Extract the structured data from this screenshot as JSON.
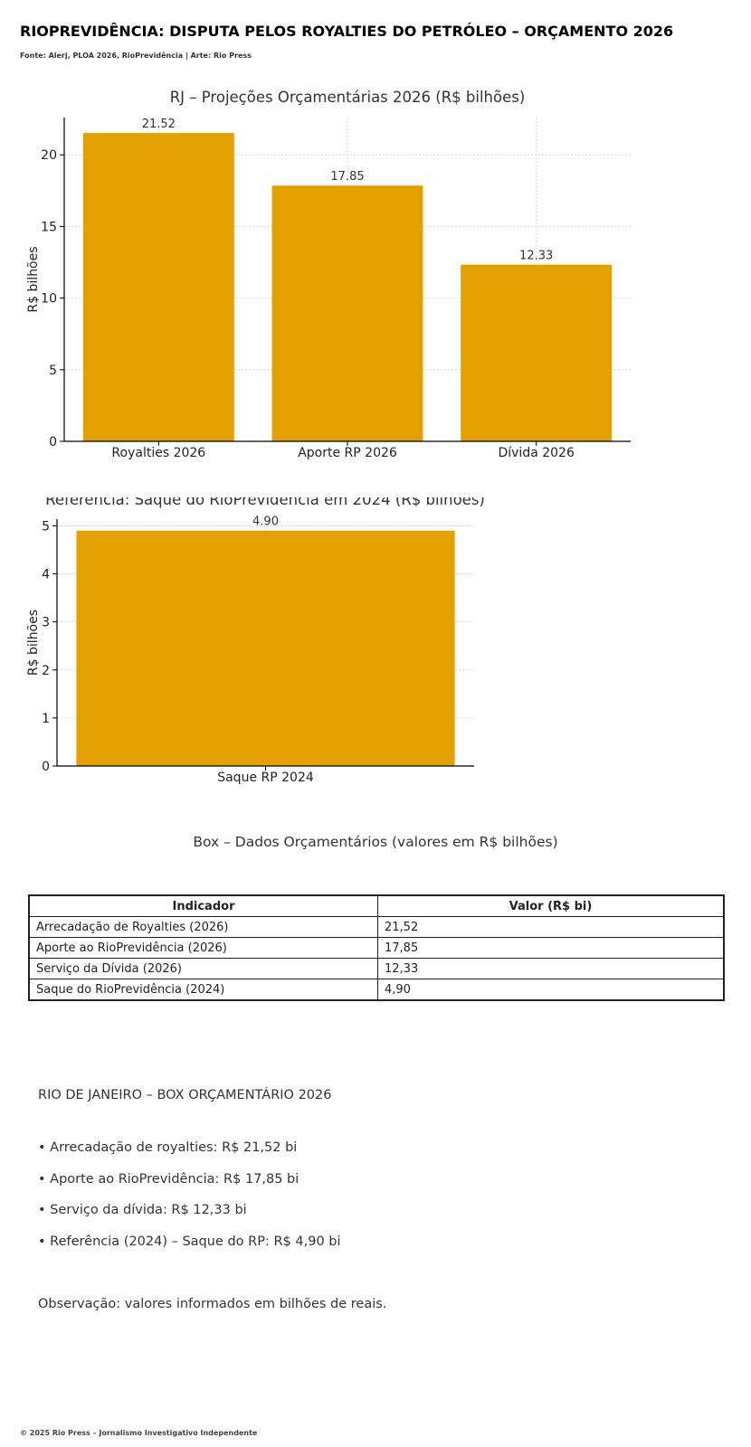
{
  "header": {
    "title": "RIOPREVIDÊNCIA: DISPUTA PELOS ROYALTIES DO PETRÓLEO – ORÇAMENTO 2026",
    "source": "Fonte: Alerj, PLOA 2026, RioPrevidência | Arte: Rio Press"
  },
  "colors": {
    "bar": "#E3A000",
    "grid": "#cfcfcf",
    "axis": "#000000"
  },
  "chart_data": [
    {
      "type": "bar",
      "title": "RJ – Projeções Orçamentárias 2026 (R$ bilhões)",
      "xlabel": "",
      "ylabel": "R$ bilhões",
      "categories": [
        "Royalties 2026",
        "Aporte RP 2026",
        "Dívida 2026"
      ],
      "values": [
        21.52,
        17.85,
        12.33
      ],
      "data_labels": [
        "21.52",
        "17.85",
        "12.33"
      ],
      "yticks": [
        0,
        5,
        10,
        15,
        20
      ],
      "ylim": [
        0,
        22.6
      ],
      "grid": true,
      "legend": "none"
    },
    {
      "type": "bar",
      "title": "Referência: Saque do RioPrevidência em 2024 (R$ bilhões)",
      "xlabel": "",
      "ylabel": "R$ bilhões",
      "categories": [
        "Saque RP 2024"
      ],
      "values": [
        4.9
      ],
      "data_labels": [
        "4.90"
      ],
      "yticks": [
        0,
        1,
        2,
        3,
        4,
        5
      ],
      "ylim": [
        0,
        5.14
      ],
      "grid": true,
      "legend": "none"
    }
  ],
  "box": {
    "title": "Box – Dados Orçamentários (valores em R$ bilhões)",
    "headers": [
      "Indicador",
      "Valor (R$ bi)"
    ],
    "rows": [
      [
        "Arrecadação de Royalties (2026)",
        "21,52"
      ],
      [
        "Aporte ao RioPrevidência (2026)",
        "17,85"
      ],
      [
        "Serviço da Dívida (2026)",
        "12,33"
      ],
      [
        "Saque do RioPrevidência (2024)",
        "4,90"
      ]
    ]
  },
  "summary": {
    "title": "RIO DE JANEIRO – BOX ORÇAMENTÁRIO 2026",
    "bullets": [
      "• Arrecadação de royalties: R$ 21,52 bi",
      "• Aporte ao RioPrevidência: R$ 17,85 bi",
      "• Serviço da dívida: R$ 12,33 bi",
      "• Referência (2024) – Saque do RP: R$ 4,90 bi"
    ],
    "note": "Observação: valores informados em bilhões de reais."
  },
  "footer": {
    "text": "© 2025 Rio Press – Jornalismo Investigativo Independente"
  }
}
